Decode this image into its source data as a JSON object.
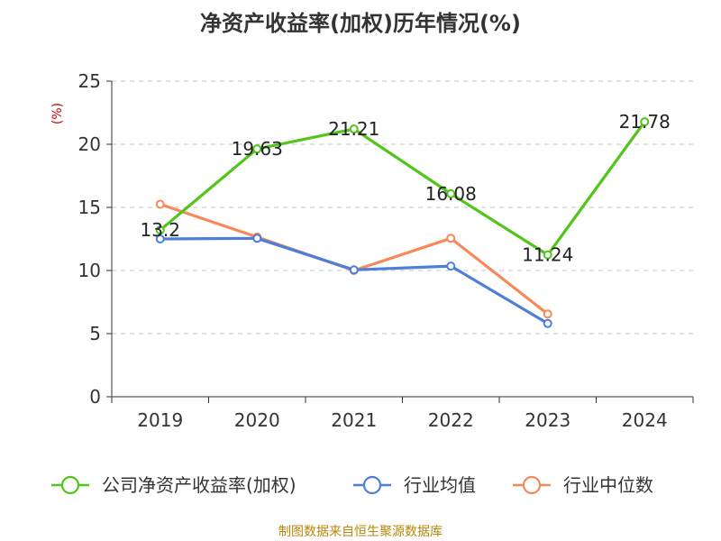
{
  "chart_data": {
    "type": "line",
    "title": "净资产收益率(加权)历年情况(%)",
    "ylabel": "(%)",
    "xlabel": "",
    "categories": [
      "2019",
      "2020",
      "2021",
      "2022",
      "2023",
      "2024"
    ],
    "ylim": [
      0,
      25
    ],
    "yticks": [
      0,
      5,
      10,
      15,
      20,
      25
    ],
    "grid": true,
    "legend_position": "bottom",
    "series": [
      {
        "name": "公司净资产收益率(加权)",
        "color": "#52c41a",
        "values": [
          13.2,
          19.63,
          21.21,
          16.08,
          11.24,
          21.78
        ],
        "labels": [
          "13.2",
          "19.63",
          "21.21",
          "16.08",
          "11.24",
          "21.78"
        ]
      },
      {
        "name": "行业均值",
        "color": "#4e7ed8",
        "values": [
          12.5,
          12.55,
          10.05,
          10.35,
          5.8,
          null
        ]
      },
      {
        "name": "行业中位数",
        "color": "#f5895b",
        "values": [
          15.25,
          12.65,
          10.0,
          12.55,
          6.55,
          null
        ]
      }
    ]
  },
  "source": "制图数据来自恒生聚源数据库"
}
